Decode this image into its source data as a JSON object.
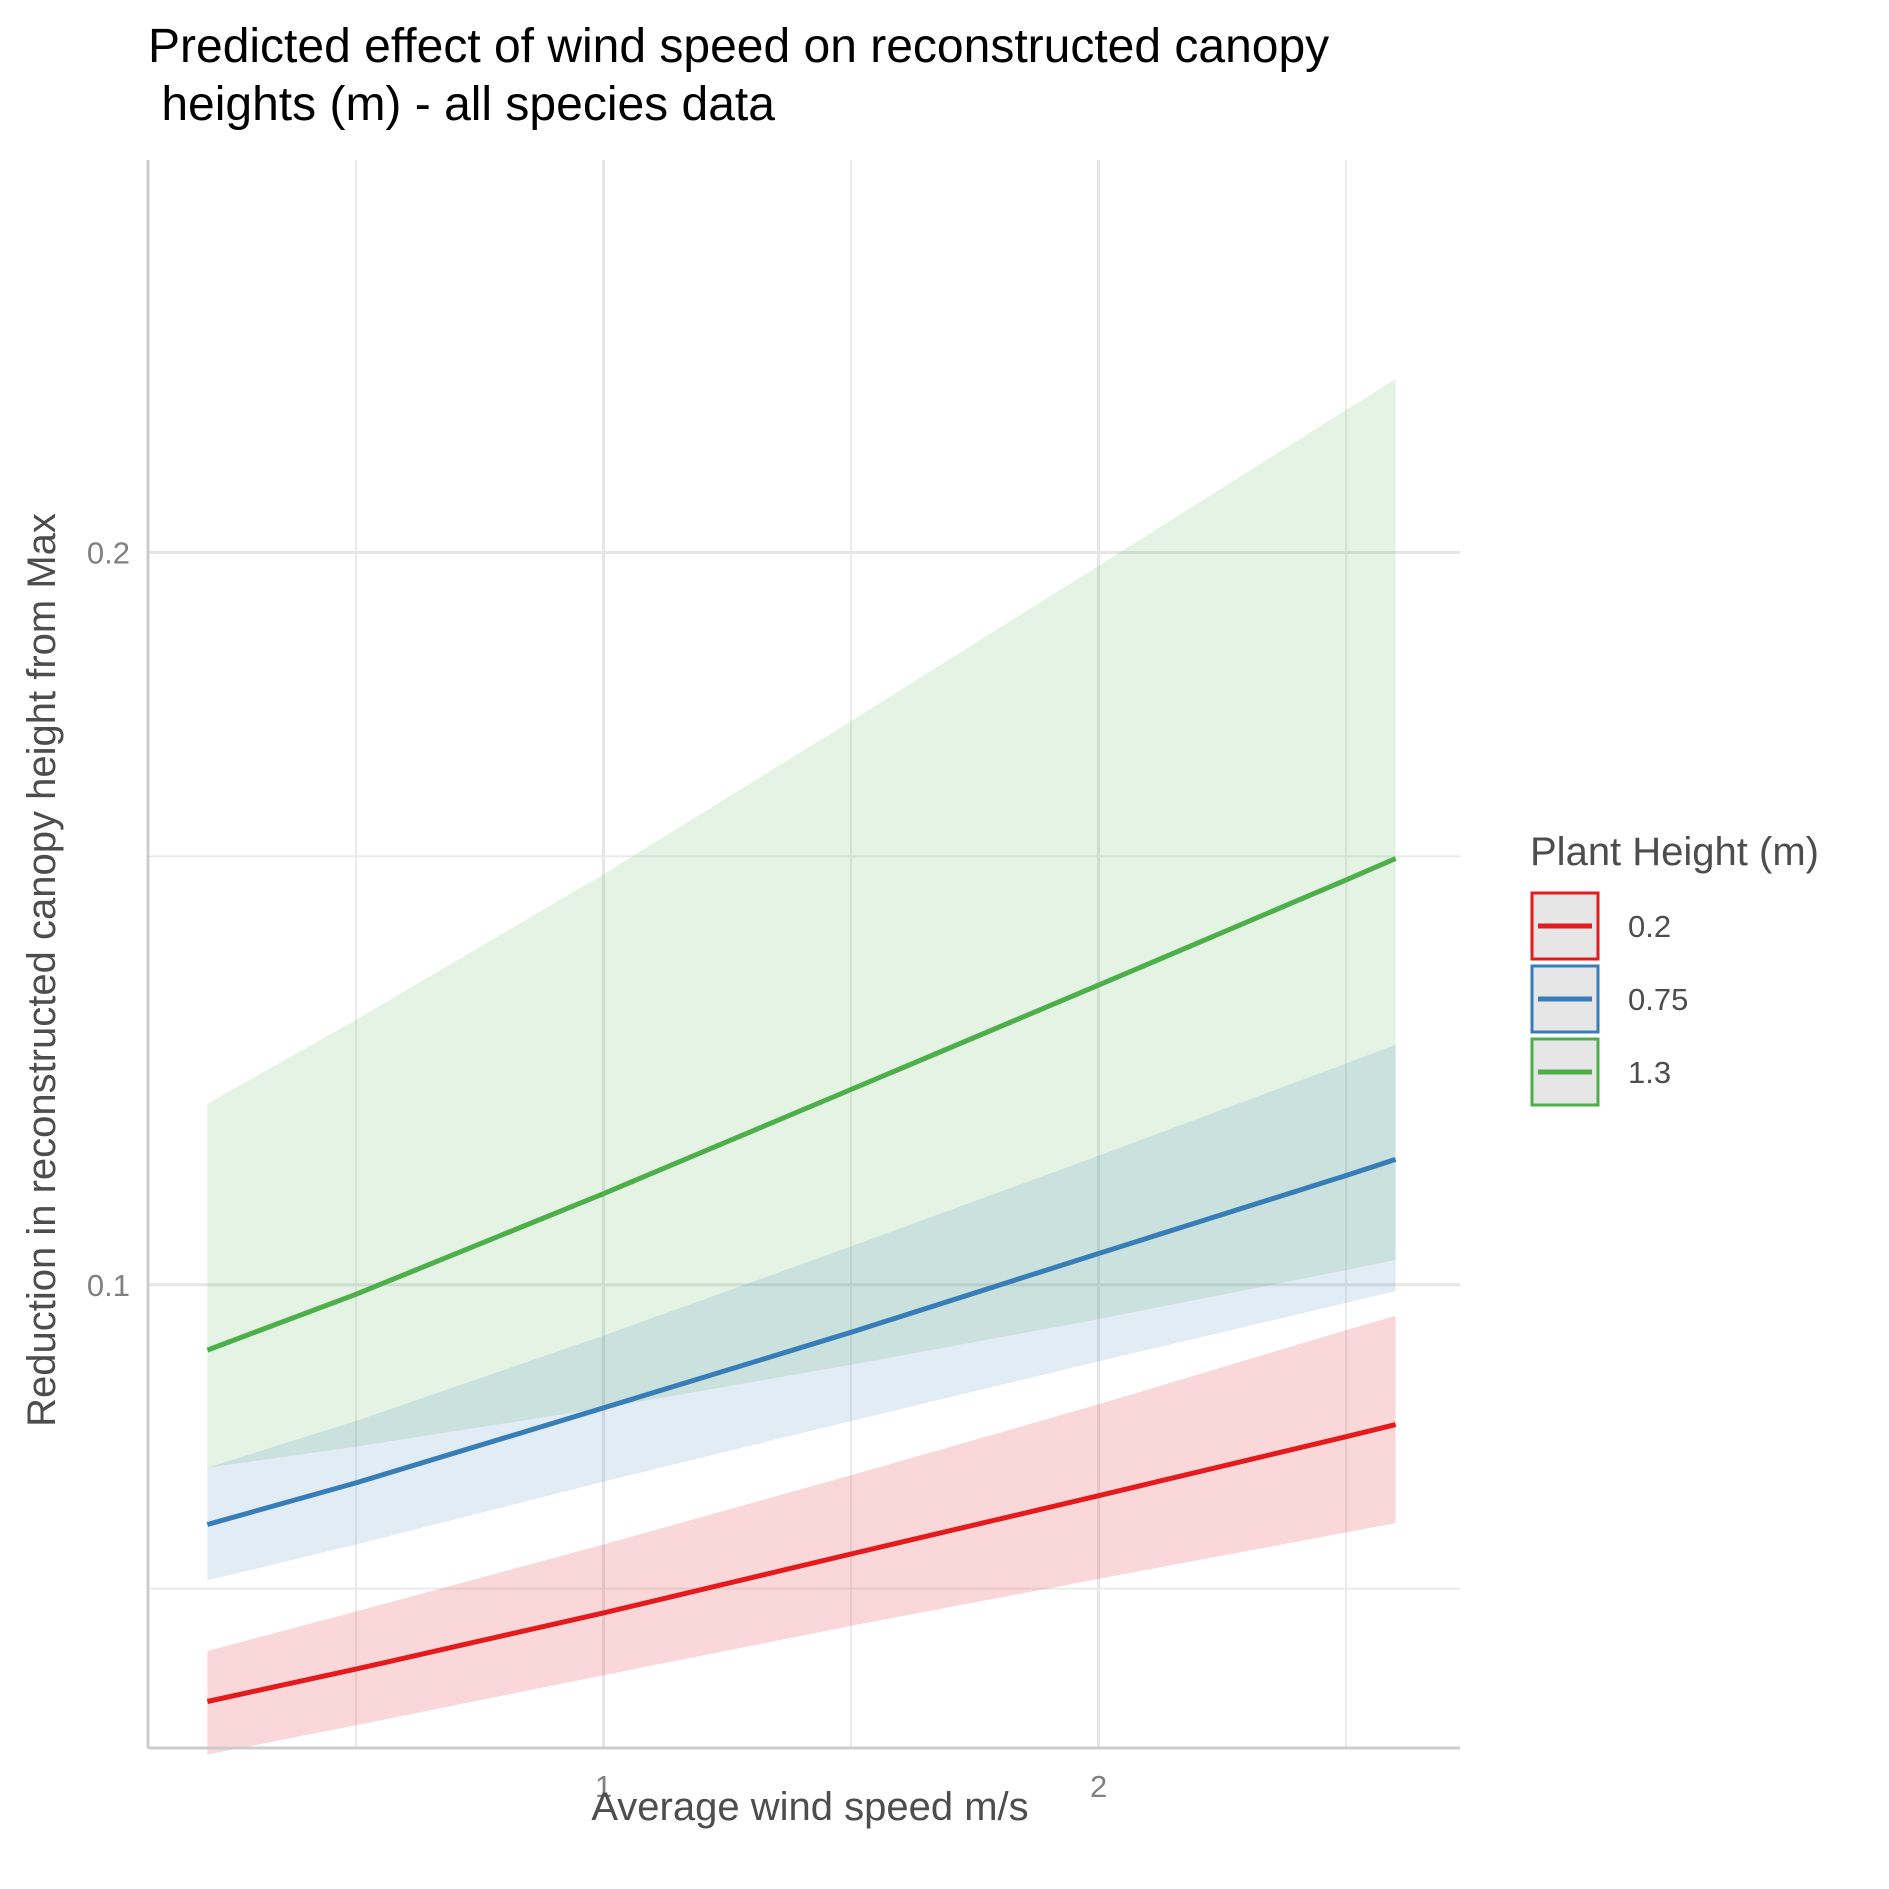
{
  "chart_data": {
    "type": "line",
    "title_line1": "Predicted effect of wind speed on reconstructed canopy",
    "title_line2": " heights (m) - all species data",
    "xlabel": "Average wind speed m/s",
    "ylabel": "Reduction in reconstructed canopy height from Max",
    "x_scale": "linear",
    "y_scale": "log",
    "xlim": [
      0.08,
      2.73
    ],
    "ylim": [
      0.0645,
      0.29
    ],
    "x_ticks": [
      1,
      2
    ],
    "x_tick_labels": [
      "1",
      "2"
    ],
    "x_minor_ticks": [
      0.5,
      1.5,
      2.5
    ],
    "y_ticks": [
      0.1,
      0.2
    ],
    "y_tick_labels": [
      "0.1",
      "0.2"
    ],
    "y_minor_ticks": [
      0.075,
      0.15
    ],
    "grid": true,
    "legend_title": "Plant Height (m)",
    "legend_position": "right",
    "x": [
      0.2,
      0.5,
      1.0,
      1.5,
      2.0,
      2.5,
      2.6
    ],
    "series": [
      {
        "name": "0.2",
        "color": "#e41a1c",
        "fill": "rgba(228,26,28,0.17)",
        "values": [
          0.0674,
          0.0695,
          0.0733,
          0.0775,
          0.0819,
          0.0866,
          0.0876
        ],
        "lower": [
          0.0641,
          0.0659,
          0.0691,
          0.0724,
          0.0757,
          0.0791,
          0.0798
        ],
        "upper": [
          0.0707,
          0.0734,
          0.0782,
          0.0835,
          0.0893,
          0.0958,
          0.0971
        ]
      },
      {
        "name": "0.75",
        "color": "#377eb8",
        "fill": "rgba(55,126,184,0.15)",
        "values": [
          0.0797,
          0.0829,
          0.089,
          0.0956,
          0.103,
          0.1109,
          0.1126
        ],
        "lower": [
          0.0756,
          0.0782,
          0.083,
          0.0879,
          0.093,
          0.0983,
          0.0994
        ],
        "upper": [
          0.0841,
          0.0879,
          0.0953,
          0.1037,
          0.113,
          0.1233,
          0.1255
        ]
      },
      {
        "name": "1.3",
        "color": "#4daf4a",
        "fill": "rgba(77,175,74,0.15)",
        "values": [
          0.094,
          0.0991,
          0.109,
          0.1203,
          0.1328,
          0.1467,
          0.1497
        ],
        "lower": [
          0.0841,
          0.0858,
          0.089,
          0.0927,
          0.0968,
          0.1014,
          0.1024
        ],
        "upper": [
          0.1187,
          0.1285,
          0.1475,
          0.1705,
          0.1975,
          0.2289,
          0.2357
        ]
      }
    ]
  }
}
